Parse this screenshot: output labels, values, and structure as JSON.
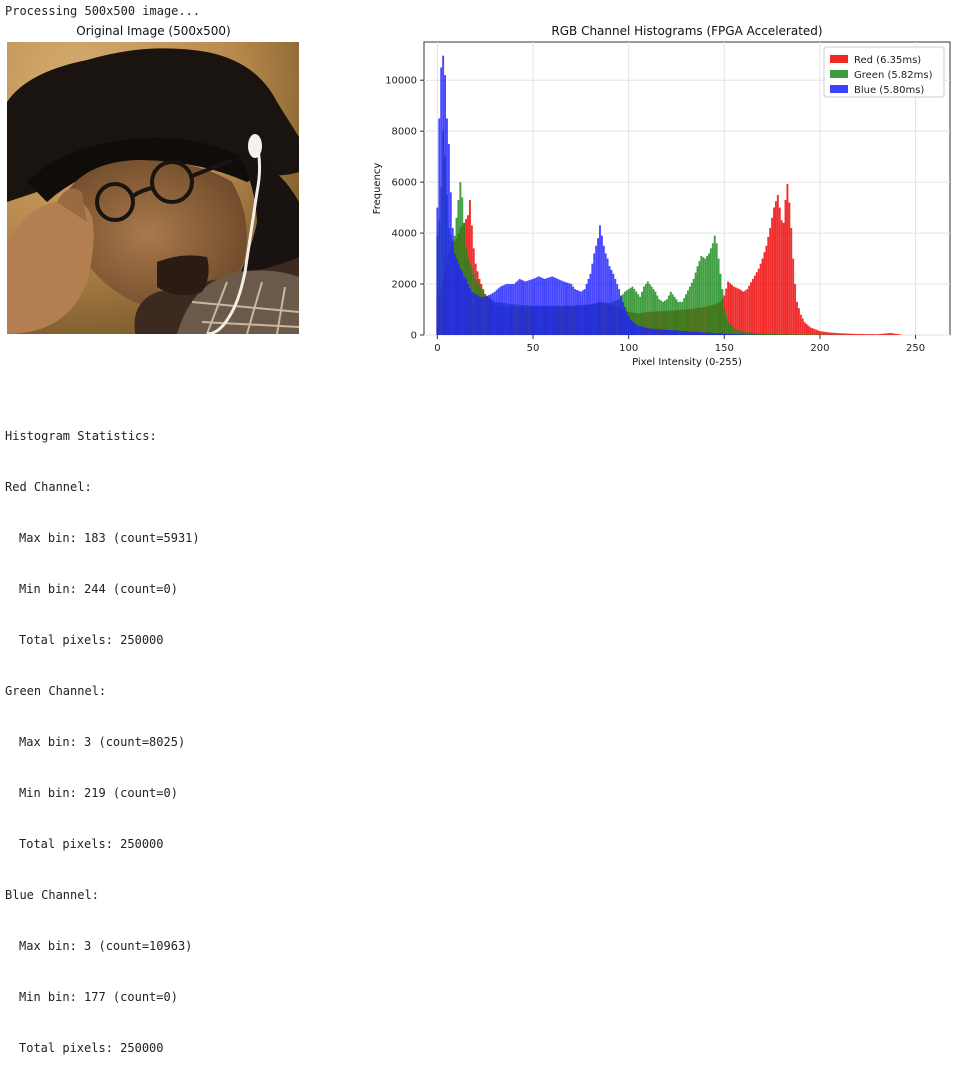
{
  "console": {
    "processing_line": "Processing 500x500 image..."
  },
  "image_panel": {
    "title": "Original Image (500x500)"
  },
  "stats": {
    "header": "Histogram Statistics:",
    "channels": [
      {
        "label": "Red Channel:",
        "max": "Max bin: 183 (count=5931)",
        "min": "Min bin: 244 (count=0)",
        "total": "Total pixels: 250000"
      },
      {
        "label": "Green Channel:",
        "max": "Max bin: 3 (count=8025)",
        "min": "Min bin: 219 (count=0)",
        "total": "Total pixels: 250000"
      },
      {
        "label": "Blue Channel:",
        "max": "Max bin: 3 (count=10963)",
        "min": "Min bin: 177 (count=0)",
        "total": "Total pixels: 250000"
      }
    ]
  },
  "chart_data": {
    "type": "bar",
    "title": "RGB Channel Histograms (FPGA Accelerated)",
    "xlabel": "Pixel Intensity (0-255)",
    "ylabel": "Frequency",
    "xlim": [
      -7,
      268
    ],
    "ylim": [
      0,
      11500
    ],
    "xticks": [
      0,
      50,
      100,
      150,
      200,
      250
    ],
    "yticks": [
      0,
      2000,
      4000,
      6000,
      8000,
      10000
    ],
    "grid": true,
    "legend_position": "top-right",
    "series": [
      {
        "name": "Red (6.35ms)",
        "color": "#ee0000",
        "points": [
          [
            0,
            1500
          ],
          [
            2,
            1800
          ],
          [
            4,
            2500
          ],
          [
            6,
            3200
          ],
          [
            8,
            3600
          ],
          [
            10,
            3800
          ],
          [
            12,
            4200
          ],
          [
            14,
            4400
          ],
          [
            16,
            4700
          ],
          [
            17,
            5300
          ],
          [
            18,
            4300
          ],
          [
            19,
            3400
          ],
          [
            20,
            2800
          ],
          [
            22,
            2200
          ],
          [
            25,
            1600
          ],
          [
            30,
            1200
          ],
          [
            35,
            1100
          ],
          [
            40,
            1100
          ],
          [
            50,
            1100
          ],
          [
            60,
            1100
          ],
          [
            70,
            1100
          ],
          [
            80,
            1200
          ],
          [
            85,
            1250
          ],
          [
            90,
            1200
          ],
          [
            95,
            1100
          ],
          [
            98,
            1000
          ],
          [
            100,
            900
          ],
          [
            105,
            850
          ],
          [
            110,
            900
          ],
          [
            120,
            950
          ],
          [
            130,
            1000
          ],
          [
            140,
            1100
          ],
          [
            145,
            1200
          ],
          [
            148,
            1300
          ],
          [
            150,
            1550
          ],
          [
            152,
            2100
          ],
          [
            155,
            1900
          ],
          [
            158,
            1800
          ],
          [
            160,
            1700
          ],
          [
            162,
            1800
          ],
          [
            165,
            2200
          ],
          [
            168,
            2600
          ],
          [
            170,
            3000
          ],
          [
            172,
            3500
          ],
          [
            174,
            4200
          ],
          [
            176,
            5000
          ],
          [
            178,
            5500
          ],
          [
            179,
            5000
          ],
          [
            180,
            4500
          ],
          [
            181,
            4400
          ],
          [
            182,
            5300
          ],
          [
            183,
            5931
          ],
          [
            184,
            5200
          ],
          [
            185,
            4200
          ],
          [
            186,
            3000
          ],
          [
            187,
            2000
          ],
          [
            188,
            1300
          ],
          [
            190,
            800
          ],
          [
            192,
            500
          ],
          [
            195,
            300
          ],
          [
            200,
            150
          ],
          [
            205,
            100
          ],
          [
            210,
            70
          ],
          [
            220,
            40
          ],
          [
            230,
            30
          ],
          [
            237,
            80
          ],
          [
            240,
            40
          ],
          [
            244,
            0
          ],
          [
            250,
            0
          ],
          [
            255,
            0
          ]
        ]
      },
      {
        "name": "Green (5.82ms)",
        "color": "#1a8a1a",
        "points": [
          [
            0,
            3900
          ],
          [
            1,
            4500
          ],
          [
            2,
            5800
          ],
          [
            3,
            8025
          ],
          [
            4,
            7000
          ],
          [
            5,
            5500
          ],
          [
            6,
            4200
          ],
          [
            8,
            3700
          ],
          [
            9,
            3900
          ],
          [
            10,
            4600
          ],
          [
            11,
            5300
          ],
          [
            12,
            6000
          ],
          [
            13,
            5400
          ],
          [
            14,
            4400
          ],
          [
            15,
            3400
          ],
          [
            16,
            3000
          ],
          [
            18,
            2600
          ],
          [
            20,
            2200
          ],
          [
            25,
            1600
          ],
          [
            30,
            1300
          ],
          [
            40,
            1200
          ],
          [
            50,
            1150
          ],
          [
            60,
            1150
          ],
          [
            70,
            1150
          ],
          [
            80,
            1200
          ],
          [
            85,
            1300
          ],
          [
            90,
            1250
          ],
          [
            95,
            1400
          ],
          [
            98,
            1700
          ],
          [
            100,
            1800
          ],
          [
            102,
            1900
          ],
          [
            104,
            1700
          ],
          [
            106,
            1500
          ],
          [
            108,
            1900
          ],
          [
            110,
            2100
          ],
          [
            112,
            1900
          ],
          [
            114,
            1700
          ],
          [
            116,
            1400
          ],
          [
            118,
            1300
          ],
          [
            120,
            1400
          ],
          [
            122,
            1700
          ],
          [
            124,
            1500
          ],
          [
            126,
            1300
          ],
          [
            128,
            1300
          ],
          [
            130,
            1600
          ],
          [
            132,
            1900
          ],
          [
            134,
            2200
          ],
          [
            136,
            2700
          ],
          [
            138,
            3100
          ],
          [
            140,
            3000
          ],
          [
            142,
            3200
          ],
          [
            144,
            3600
          ],
          [
            145,
            3900
          ],
          [
            146,
            3600
          ],
          [
            147,
            3000
          ],
          [
            148,
            2400
          ],
          [
            149,
            1800
          ],
          [
            150,
            1000
          ],
          [
            152,
            500
          ],
          [
            155,
            250
          ],
          [
            160,
            120
          ],
          [
            170,
            60
          ],
          [
            180,
            30
          ],
          [
            200,
            15
          ],
          [
            219,
            0
          ],
          [
            230,
            0
          ],
          [
            255,
            0
          ]
        ]
      },
      {
        "name": "Blue (5.80ms)",
        "color": "#1f1fff",
        "points": [
          [
            0,
            5000
          ],
          [
            1,
            8500
          ],
          [
            2,
            10500
          ],
          [
            3,
            10963
          ],
          [
            4,
            10200
          ],
          [
            5,
            8500
          ],
          [
            6,
            7500
          ],
          [
            7,
            5600
          ],
          [
            8,
            4200
          ],
          [
            9,
            3200
          ],
          [
            10,
            3000
          ],
          [
            11,
            2800
          ],
          [
            12,
            2600
          ],
          [
            13,
            2500
          ],
          [
            14,
            2300
          ],
          [
            15,
            2200
          ],
          [
            16,
            2000
          ],
          [
            18,
            1700
          ],
          [
            20,
            1600
          ],
          [
            22,
            1500
          ],
          [
            25,
            1500
          ],
          [
            28,
            1600
          ],
          [
            30,
            1700
          ],
          [
            33,
            1900
          ],
          [
            36,
            2000
          ],
          [
            40,
            2000
          ],
          [
            43,
            2200
          ],
          [
            46,
            2100
          ],
          [
            50,
            2200
          ],
          [
            53,
            2300
          ],
          [
            56,
            2200
          ],
          [
            60,
            2300
          ],
          [
            63,
            2200
          ],
          [
            66,
            2100
          ],
          [
            70,
            2000
          ],
          [
            72,
            1800
          ],
          [
            75,
            1700
          ],
          [
            77,
            1800
          ],
          [
            80,
            2400
          ],
          [
            82,
            3200
          ],
          [
            84,
            3800
          ],
          [
            85,
            4300
          ],
          [
            86,
            3900
          ],
          [
            87,
            3500
          ],
          [
            88,
            3200
          ],
          [
            89,
            3000
          ],
          [
            90,
            2700
          ],
          [
            92,
            2400
          ],
          [
            93,
            2200
          ],
          [
            95,
            1800
          ],
          [
            97,
            1300
          ],
          [
            99,
            900
          ],
          [
            101,
            600
          ],
          [
            104,
            400
          ],
          [
            108,
            300
          ],
          [
            112,
            250
          ],
          [
            120,
            200
          ],
          [
            130,
            150
          ],
          [
            140,
            100
          ],
          [
            150,
            50
          ],
          [
            160,
            20
          ],
          [
            170,
            5
          ],
          [
            177,
            0
          ],
          [
            190,
            0
          ],
          [
            255,
            0
          ]
        ]
      }
    ]
  }
}
